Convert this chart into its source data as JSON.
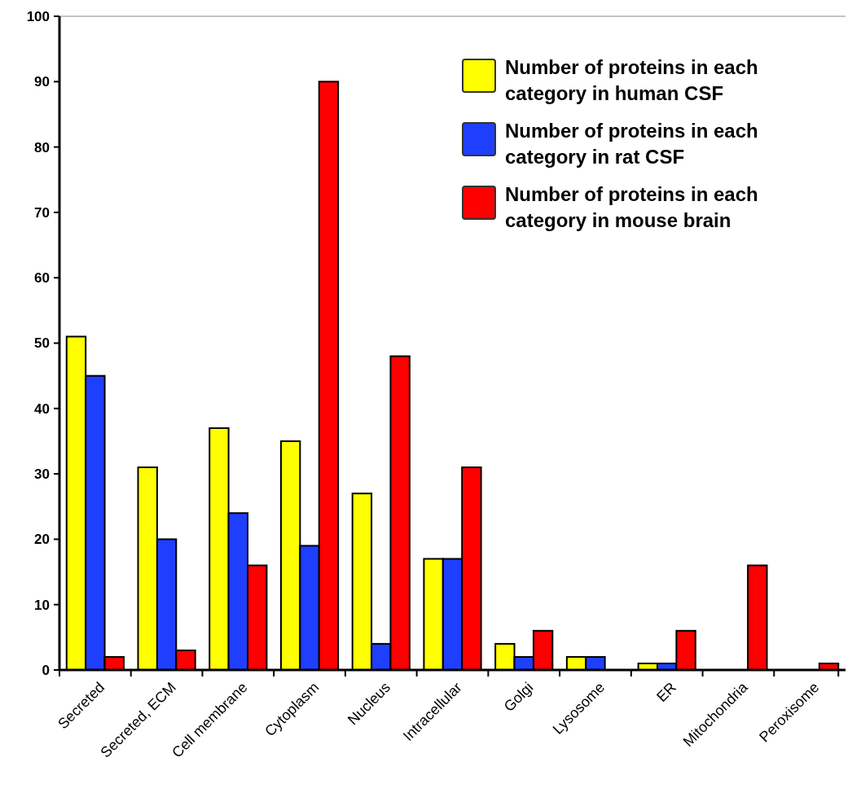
{
  "chart_data": {
    "type": "bar",
    "categories": [
      "Secreted",
      "Secreted, ECM",
      "Cell membrane",
      "Cytoplasm",
      "Nucleus",
      "Intracellular",
      "Golgi",
      "Lysosome",
      "ER",
      "Mitochondria",
      "Peroxisome"
    ],
    "series": [
      {
        "name": "Number of proteins in each category in human CSF",
        "color": "#ffff00",
        "values": [
          51,
          31,
          37,
          35,
          27,
          17,
          4,
          2,
          1,
          0,
          0
        ]
      },
      {
        "name": "Number of proteins in each category in rat CSF",
        "color": "#1f3fff",
        "values": [
          45,
          20,
          24,
          19,
          4,
          17,
          2,
          2,
          1,
          0,
          0
        ]
      },
      {
        "name": "Number of proteins in each category in mouse brain",
        "color": "#ff0000",
        "values": [
          2,
          3,
          16,
          90,
          48,
          31,
          6,
          0,
          6,
          16,
          1
        ]
      }
    ],
    "ylim": [
      0,
      100
    ],
    "yticks": [
      0,
      10,
      20,
      30,
      40,
      50,
      60,
      70,
      80,
      90,
      100
    ],
    "legend": "top right"
  }
}
